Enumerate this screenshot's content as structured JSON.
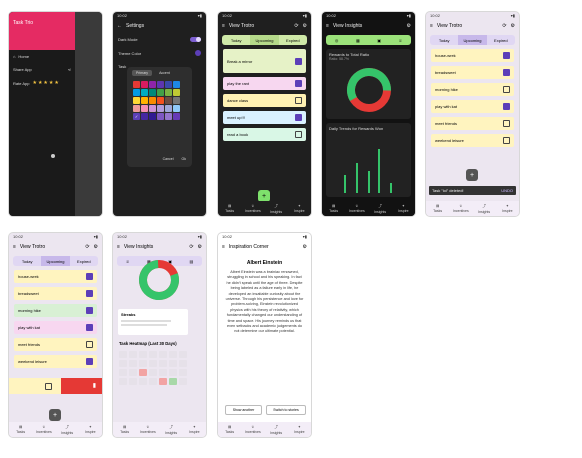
{
  "status_time": "10:02",
  "phone1": {
    "drawer_title": "Task Trio",
    "menu": [
      {
        "icon": "home-icon",
        "label": "Home"
      },
      {
        "icon": "share-icon",
        "label": "Share App"
      },
      {
        "icon": "star-icon",
        "label": "Rate App"
      }
    ],
    "stars": "★★★★★"
  },
  "phone2": {
    "title": "Settings",
    "items": [
      "Dark Mode",
      "Theme Color",
      "Task"
    ],
    "dialog_tabs": [
      "Primary",
      "Accent"
    ],
    "dialog_buttons": [
      "Cancel",
      "Ok"
    ]
  },
  "phone3": {
    "title": "View Trotro",
    "tabs": [
      "Today",
      "Upcoming",
      "Expired"
    ],
    "tasks": [
      {
        "label": "Break a mirror",
        "checked": true,
        "color": "#e6f2c7"
      },
      {
        "label": "play the rant",
        "checked": true,
        "color": "#f7d7f0"
      },
      {
        "label": "dance class",
        "checked": false,
        "color": "#fff1b3"
      },
      {
        "label": "meet up!!!",
        "checked": true,
        "color": "#d9f1ff"
      },
      {
        "label": "read a book",
        "checked": false,
        "color": "#d9f7e6"
      }
    ]
  },
  "phone4": {
    "title": "View Insights",
    "section1": "Rewards to Total Ratio",
    "ratio_label": "Ratio: 58.7%",
    "section2": "Daily Trends for Rewards Won"
  },
  "phone5": {
    "title": "View Trotro",
    "tabs": [
      "Today",
      "Upcoming",
      "Expired"
    ],
    "tasks": [
      {
        "label": "house-wrek",
        "checked": true
      },
      {
        "label": "breadsweet",
        "checked": true
      },
      {
        "label": "morning hike",
        "checked": false
      },
      {
        "label": "play with kat",
        "checked": true
      },
      {
        "label": "meet friends",
        "checked": false
      },
      {
        "label": "weekend leisure",
        "checked": false
      }
    ],
    "toast_text": "Task \"lol\" deleted!",
    "toast_action": "UNDO"
  },
  "phone6": {
    "title": "View Trotro",
    "tabs": [
      "Today",
      "Upcoming",
      "Expired"
    ],
    "tasks": [
      {
        "label": "house-wrek",
        "checked": true
      },
      {
        "label": "breadsweet",
        "checked": true
      },
      {
        "label": "morning hike",
        "checked": true
      },
      {
        "label": "play with kat",
        "checked": true
      },
      {
        "label": "meet friends",
        "checked": false
      },
      {
        "label": "weekend leisure",
        "checked": true
      }
    ]
  },
  "phone7": {
    "title": "View Insights",
    "streak_label": "Streaks",
    "heatmap_title": "Task Heatmap (Last 30 Days)"
  },
  "phone8": {
    "title": "Inspiration Corner",
    "heading": "Albert Einstein",
    "body": "Albert Einstein was a brainiac renowned, struggling in school and his speaking. In fact he didn't speak until the age of three. Despite being labeled as a failure early in life, he developed an insatiable curiosity about the universe. Through his persistence and love for problem-solving, Einstein revolutionized physics with his theory of relativity, which fundamentally changed our understanding of time and space. His journey reminds us that even setbacks and academic judgements do not determine our ultimate potential.",
    "buttons": [
      "Show another",
      "Switch to stories"
    ]
  },
  "bottom_nav": [
    "Tasks",
    "Incentives",
    "Insights",
    "Inspire"
  ],
  "colors": {
    "brand_pink": "#e52b63",
    "accent_purple": "#5c3fb8",
    "chart_green": "#35c46a",
    "chart_red": "#e53935"
  }
}
